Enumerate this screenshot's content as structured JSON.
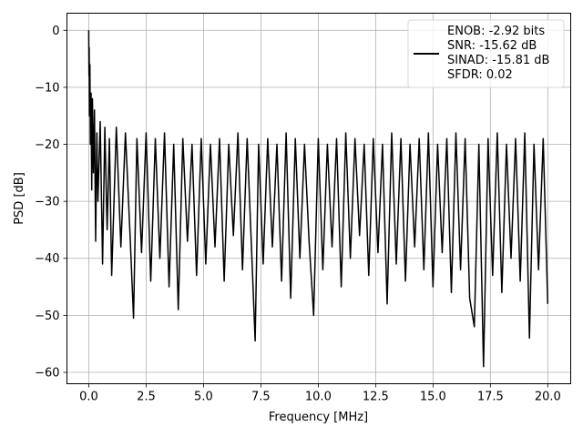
{
  "chart_data": {
    "type": "line",
    "xlabel": "Frequency [MHz]",
    "ylabel": "PSD [dB]",
    "xlim": [
      -0.95,
      21.0
    ],
    "ylim": [
      -62.0,
      3.0
    ],
    "xticks": [
      0.0,
      2.5,
      5.0,
      7.5,
      10.0,
      12.5,
      15.0,
      17.5,
      20.0
    ],
    "xtick_labels": [
      "0.0",
      "2.5",
      "5.0",
      "7.5",
      "10.0",
      "12.5",
      "15.0",
      "17.5",
      "20.0"
    ],
    "yticks": [
      0,
      -10,
      -20,
      -30,
      -40,
      -50,
      -60
    ],
    "ytick_labels": [
      "0",
      "−10",
      "−20",
      "−30",
      "−40",
      "−50",
      "−60"
    ],
    "grid": true,
    "legend_position": "top-right",
    "series": [
      {
        "name": "ENOB: -2.92 bits\nSNR: -15.62 dB\nSINAD: -15.81 dB\nSFDR: 0.02",
        "color": "#000000",
        "x": [
          0.0,
          0.01,
          0.02,
          0.03,
          0.05,
          0.07,
          0.1,
          0.13,
          0.16,
          0.2,
          0.25,
          0.3,
          0.35,
          0.4,
          0.5,
          0.6,
          0.7,
          0.8,
          0.9,
          1.0,
          1.2,
          1.4,
          1.6,
          1.8,
          1.95,
          2.1,
          2.3,
          2.5,
          2.7,
          2.9,
          3.1,
          3.3,
          3.5,
          3.7,
          3.9,
          4.1,
          4.3,
          4.5,
          4.7,
          4.9,
          5.1,
          5.3,
          5.5,
          5.7,
          5.9,
          6.1,
          6.3,
          6.5,
          6.7,
          6.9,
          7.1,
          7.25,
          7.4,
          7.6,
          7.8,
          8.0,
          8.2,
          8.4,
          8.6,
          8.8,
          9.0,
          9.2,
          9.4,
          9.6,
          9.8,
          10.0,
          10.2,
          10.4,
          10.6,
          10.8,
          11.0,
          11.2,
          11.4,
          11.6,
          11.8,
          12.0,
          12.2,
          12.4,
          12.6,
          12.8,
          13.0,
          13.2,
          13.4,
          13.6,
          13.8,
          14.0,
          14.2,
          14.4,
          14.6,
          14.8,
          15.0,
          15.2,
          15.4,
          15.6,
          15.8,
          16.0,
          16.2,
          16.4,
          16.6,
          16.8,
          17.0,
          17.2,
          17.4,
          17.6,
          17.8,
          18.0,
          18.2,
          18.4,
          18.6,
          18.8,
          19.0,
          19.2,
          19.4,
          19.6,
          19.8,
          20.0
        ],
        "values": [
          0.0,
          -8.0,
          -3.0,
          -15.0,
          -6.0,
          -20.0,
          -11.0,
          -28.0,
          -12.0,
          -25.0,
          -14.0,
          -37.0,
          -18.0,
          -30.0,
          -16.0,
          -41.0,
          -17.0,
          -35.0,
          -19.0,
          -43.0,
          -17.0,
          -38.0,
          -18.0,
          -36.0,
          -50.5,
          -19.0,
          -39.0,
          -18.0,
          -44.0,
          -19.0,
          -40.0,
          -18.0,
          -45.0,
          -20.0,
          -49.0,
          -19.0,
          -37.0,
          -20.0,
          -43.0,
          -19.0,
          -41.0,
          -20.0,
          -38.0,
          -19.0,
          -44.0,
          -20.0,
          -36.0,
          -18.0,
          -42.0,
          -19.0,
          -39.0,
          -54.5,
          -20.0,
          -41.0,
          -19.0,
          -38.0,
          -20.0,
          -44.0,
          -18.0,
          -47.0,
          -19.0,
          -40.0,
          -20.0,
          -37.0,
          -50.0,
          -19.0,
          -42.0,
          -20.0,
          -38.0,
          -19.0,
          -45.0,
          -18.0,
          -40.0,
          -19.0,
          -36.0,
          -20.0,
          -43.0,
          -19.0,
          -39.0,
          -20.0,
          -48.0,
          -18.0,
          -41.0,
          -19.0,
          -44.0,
          -20.0,
          -38.0,
          -19.0,
          -42.0,
          -18.0,
          -45.0,
          -20.0,
          -39.0,
          -19.0,
          -46.0,
          -18.0,
          -42.0,
          -19.0,
          -47.0,
          -52.0,
          -20.0,
          -59.0,
          -19.0,
          -43.0,
          -18.0,
          -46.0,
          -20.0,
          -40.0,
          -19.0,
          -44.0,
          -18.0,
          -54.0,
          -20.0,
          -42.0,
          -19.0,
          -48.0
        ]
      }
    ]
  }
}
